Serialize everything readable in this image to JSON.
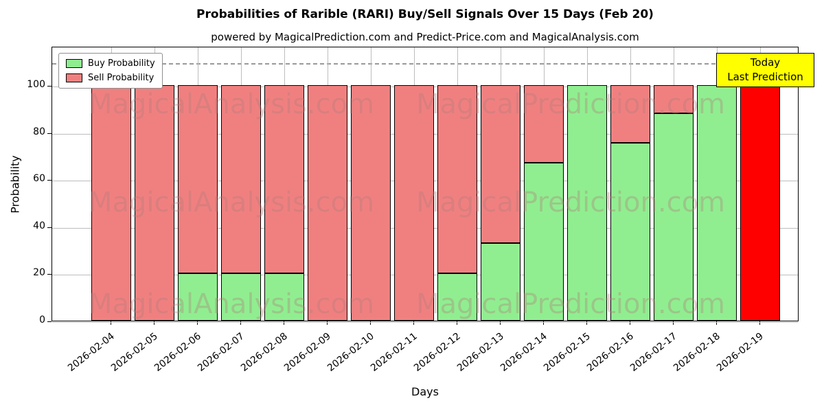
{
  "chart_data": {
    "type": "bar",
    "stacked": true,
    "title": "Probabilities of Rarible (RARI) Buy/Sell Signals Over 15 Days (Feb 20)",
    "subtitle": "powered by MagicalPrediction.com and Predict-Price.com and MagicalAnalysis.com",
    "xlabel": "Days",
    "ylabel": "Probability",
    "ylim": [
      0,
      116.6
    ],
    "yticks": [
      0,
      20,
      40,
      60,
      80,
      100
    ],
    "grid": true,
    "dashed_line_y": 110,
    "legend_position": "upper left",
    "categories": [
      "2026-02-04",
      "2026-02-05",
      "2026-02-06",
      "2026-02-07",
      "2026-02-08",
      "2026-02-09",
      "2026-02-10",
      "2026-02-11",
      "2026-02-12",
      "2026-02-13",
      "2026-02-14",
      "2026-02-15",
      "2026-02-16",
      "2026-02-17",
      "2026-02-18",
      "2026-02-19"
    ],
    "series": [
      {
        "name": "Buy Probability",
        "color": "#90EE90",
        "values": [
          0,
          0,
          20,
          20,
          20,
          0,
          0,
          0,
          20,
          33,
          67,
          100,
          75.5,
          88,
          100,
          0
        ]
      },
      {
        "name": "Sell Probability",
        "color": "#F08080",
        "values": [
          100,
          100,
          80,
          80,
          80,
          100,
          100,
          100,
          80,
          67,
          33,
          0,
          24.5,
          12,
          0,
          0
        ]
      }
    ],
    "today_bar": {
      "category": "2026-02-19",
      "index": 15,
      "value": 100,
      "color": "#FF0000"
    }
  },
  "legend": {
    "items": [
      {
        "label": "Buy Probability",
        "color": "#90EE90"
      },
      {
        "label": "Sell Probability",
        "color": "#F08080"
      }
    ]
  },
  "today_box": {
    "lines": [
      "Today",
      "Last Prediction"
    ],
    "bg": "#FFFF00"
  },
  "watermark": {
    "texts": [
      "MagicalAnalysis.com",
      "MagicalPrediction.com"
    ]
  }
}
